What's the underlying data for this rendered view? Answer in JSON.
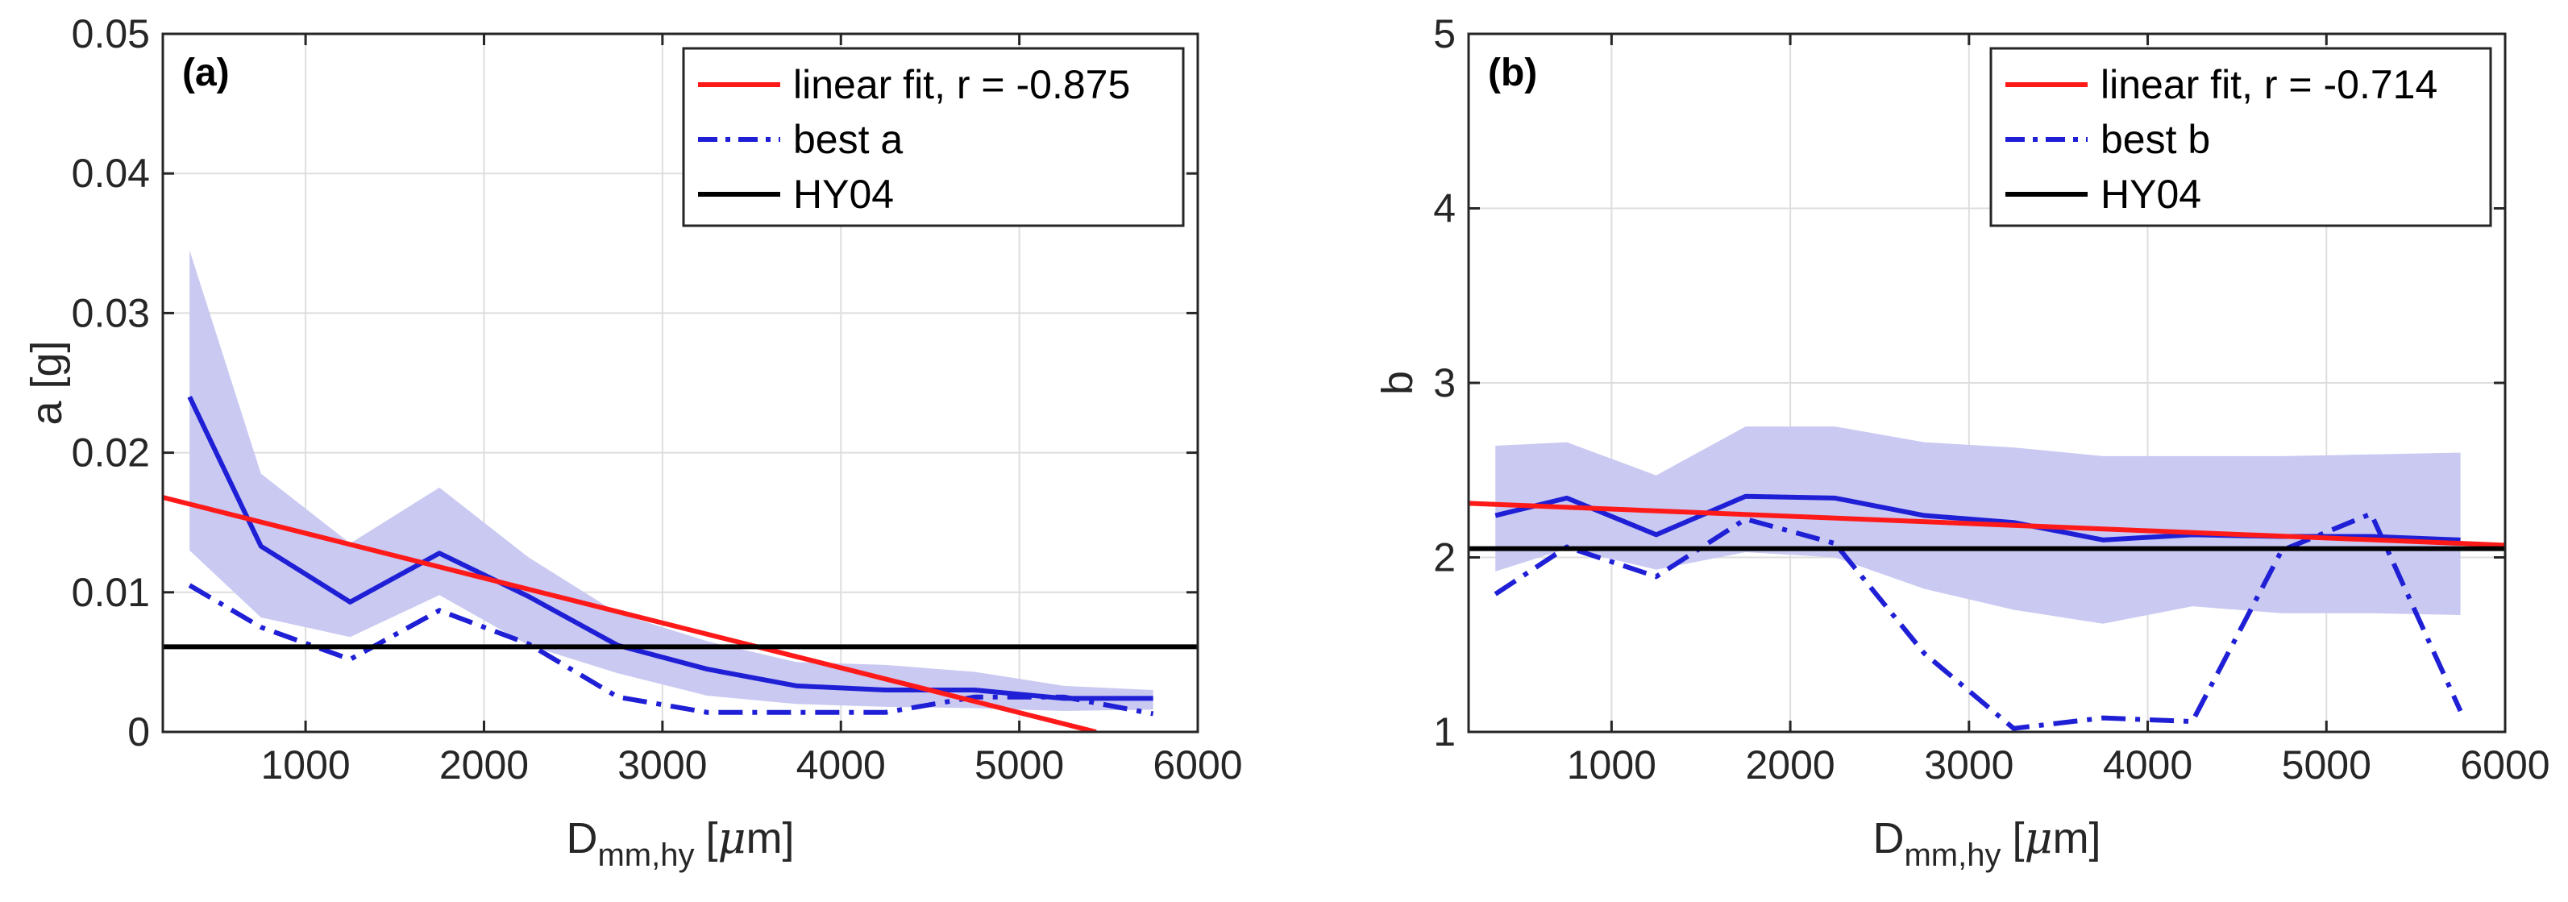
{
  "chart_data": [
    {
      "type": "line",
      "panel_label": "(a)",
      "xlabel": {
        "main": "D",
        "sub": "mm,hy",
        "unit_pre": "[",
        "unit_mu": "μ",
        "unit_post": "m]"
      },
      "ylabel": "a [g]",
      "xlim": [
        200,
        6000
      ],
      "ylim": [
        0,
        0.05
      ],
      "xticks": [
        1000,
        2000,
        3000,
        4000,
        5000,
        6000
      ],
      "xtick_labels": [
        "1000",
        "2000",
        "3000",
        "4000",
        "5000",
        "6000"
      ],
      "yticks": [
        0,
        0.01,
        0.02,
        0.03,
        0.04,
        0.05
      ],
      "ytick_labels": [
        "0",
        "0.01",
        "0.02",
        "0.03",
        "0.04",
        "0.05"
      ],
      "grid": true,
      "legend_position": "top-right",
      "band": {
        "name": "spread",
        "color": "#c9c9f2",
        "x": [
          350,
          750,
          1250,
          1750,
          2250,
          2750,
          3250,
          3750,
          4250,
          4750,
          5250,
          5750
        ],
        "upper": [
          0.0345,
          0.0185,
          0.0135,
          0.0175,
          0.0125,
          0.0085,
          0.0065,
          0.005,
          0.0048,
          0.0043,
          0.0033,
          0.003
        ],
        "lower": [
          0.013,
          0.0082,
          0.0068,
          0.0098,
          0.0062,
          0.0042,
          0.0026,
          0.002,
          0.0018,
          0.0017,
          0.0015,
          0.0016
        ]
      },
      "series": [
        {
          "name": "median a",
          "in_legend": false,
          "style": "solid",
          "color": "#1f1fd6",
          "x": [
            350,
            750,
            1250,
            1750,
            2250,
            2750,
            3250,
            3750,
            4250,
            4750,
            5250,
            5750
          ],
          "y": [
            0.024,
            0.0133,
            0.0093,
            0.0128,
            0.0097,
            0.0062,
            0.0045,
            0.0033,
            0.003,
            0.003,
            0.0024,
            0.0024
          ]
        },
        {
          "name": "best a",
          "in_legend": true,
          "style": "dashdot",
          "color": "#1f1fd6",
          "x": [
            350,
            750,
            1250,
            1750,
            2250,
            2750,
            3250,
            3750,
            4250,
            4750,
            5250,
            5750
          ],
          "y": [
            0.0105,
            0.0075,
            0.0052,
            0.0087,
            0.0063,
            0.0025,
            0.0014,
            0.0014,
            0.0014,
            0.0025,
            0.0025,
            0.0013
          ]
        },
        {
          "name": "linear fit, r = -0.875",
          "in_legend": true,
          "style": "solid",
          "color": "#ff1a1a",
          "x": [
            200,
            5430
          ],
          "y": [
            0.0168,
            0.0
          ]
        },
        {
          "name": "HY04",
          "in_legend": true,
          "style": "solid",
          "color": "#000000",
          "x": [
            200,
            6000
          ],
          "y": [
            0.0061,
            0.0061
          ]
        }
      ],
      "legend_order": [
        "linear fit, r = -0.875",
        "best a",
        "HY04"
      ]
    },
    {
      "type": "line",
      "panel_label": "(b)",
      "xlabel": {
        "main": "D",
        "sub": "mm,hy",
        "unit_pre": "[",
        "unit_mu": "μ",
        "unit_post": "m]"
      },
      "ylabel": "b",
      "xlim": [
        200,
        6000
      ],
      "ylim": [
        1,
        5
      ],
      "xticks": [
        1000,
        2000,
        3000,
        4000,
        5000,
        6000
      ],
      "xtick_labels": [
        "1000",
        "2000",
        "3000",
        "4000",
        "5000",
        "6000"
      ],
      "yticks": [
        1,
        2,
        3,
        4,
        5
      ],
      "ytick_labels": [
        "1",
        "2",
        "3",
        "4",
        "5"
      ],
      "grid": true,
      "legend_position": "top-right",
      "band": {
        "name": "spread",
        "color": "#c9c9f2",
        "x": [
          350,
          750,
          1250,
          1750,
          2250,
          2750,
          3250,
          3750,
          4250,
          4750,
          5250,
          5750
        ],
        "upper": [
          2.64,
          2.66,
          2.47,
          2.75,
          2.75,
          2.66,
          2.63,
          2.58,
          2.58,
          2.58,
          2.59,
          2.6
        ],
        "lower": [
          1.92,
          2.05,
          1.93,
          2.03,
          2.0,
          1.82,
          1.7,
          1.62,
          1.72,
          1.68,
          1.68,
          1.67
        ]
      },
      "series": [
        {
          "name": "median b",
          "in_legend": false,
          "style": "solid",
          "color": "#1f1fd6",
          "x": [
            350,
            750,
            1250,
            1750,
            2250,
            2750,
            3250,
            3750,
            4250,
            4750,
            5250,
            5750
          ],
          "y": [
            2.24,
            2.34,
            2.13,
            2.35,
            2.34,
            2.24,
            2.2,
            2.1,
            2.13,
            2.12,
            2.12,
            2.1
          ]
        },
        {
          "name": "best b",
          "in_legend": true,
          "style": "dashdot",
          "color": "#1f1fd6",
          "x": [
            350,
            750,
            1250,
            1750,
            2250,
            2750,
            3250,
            3750,
            4250,
            4750,
            5250,
            5750
          ],
          "y": [
            1.79,
            2.06,
            1.89,
            2.22,
            2.08,
            1.45,
            1.02,
            1.08,
            1.06,
            2.04,
            2.25,
            1.12
          ]
        },
        {
          "name": "linear fit, r = -0.714",
          "in_legend": true,
          "style": "solid",
          "color": "#ff1a1a",
          "x": [
            200,
            6000
          ],
          "y": [
            2.31,
            2.07
          ]
        },
        {
          "name": "HY04",
          "in_legend": true,
          "style": "solid",
          "color": "#000000",
          "x": [
            200,
            6000
          ],
          "y": [
            2.05,
            2.05
          ]
        }
      ],
      "legend_order": [
        "linear fit, r = -0.714",
        "best b",
        "HY04"
      ]
    }
  ]
}
